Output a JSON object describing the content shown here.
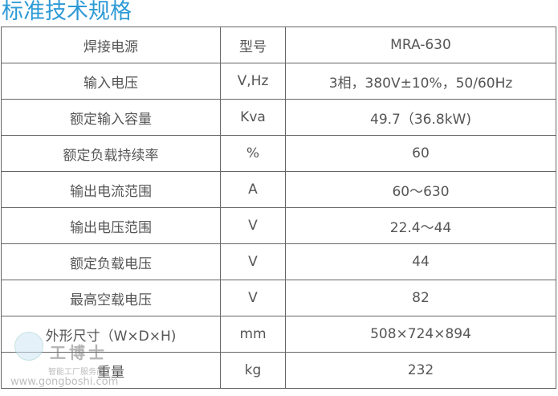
{
  "title": "标准技术规格",
  "rows": [
    {
      "name": "焊接电源",
      "unit": "型号",
      "value": "MRA-630"
    },
    {
      "name": "输入电压",
      "unit": "V,Hz",
      "value": "3相，380V±10%，50/60Hz"
    },
    {
      "name": "额定输入容量",
      "unit": "Kva",
      "value": "49.7（36.8kW)"
    },
    {
      "name": "额定负载持续率",
      "unit": "%",
      "value": "60"
    },
    {
      "name": "输出电流范围",
      "unit": "A",
      "value": "60～630"
    },
    {
      "name": "输出电压范围",
      "unit": "V",
      "value": "22.4～44"
    },
    {
      "name": "额定负载电压",
      "unit": "V",
      "value": "44"
    },
    {
      "name": "最高空载电压",
      "unit": "V",
      "value": "82"
    },
    {
      "name": "外形尺寸（W×D×H)",
      "unit": "mm",
      "value": "508×724×894"
    },
    {
      "name": "重量",
      "unit": "kg",
      "value": "232"
    }
  ],
  "watermark": {
    "brand": "工博士",
    "slogan": "智能工厂服务商",
    "url": "www.gongboshi.com"
  }
}
